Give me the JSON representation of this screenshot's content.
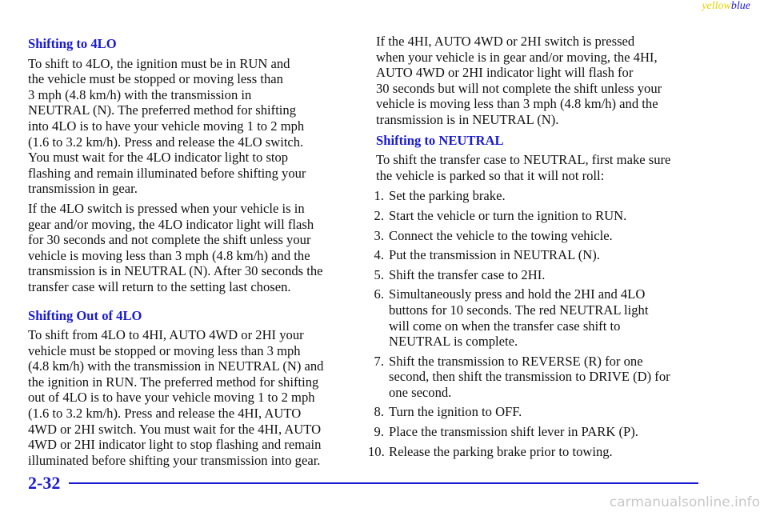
{
  "header": {
    "left": "yellow",
    "right": "blue"
  },
  "left_column": [
    {
      "heading": "Shifting to 4LO"
    },
    {
      "lines": [
        "To shift to 4LO, the ignition must be in RUN and",
        "the vehicle must be stopped or moving less than",
        "3 mph (4.8 km/h) with the transmission in",
        "NEUTRAL (N). The preferred method for shifting",
        "into 4LO is to have your vehicle moving 1 to 2 mph",
        "(1.6 to 3.2 km/h). Press and release the 4LO switch.",
        "You must wait for the 4LO indicator light to stop",
        "flashing and remain illuminated before shifting your",
        "transmission in gear."
      ]
    },
    {
      "lines": [
        "If the 4LO switch is pressed when your vehicle is in",
        "gear and/or moving, the 4LO indicator light will flash",
        "for 30 seconds and not complete the shift unless your",
        "vehicle is moving less than 3 mph (4.8 km/h) and the",
        "transmission is in NEUTRAL (N). After 30 seconds the",
        "transfer case will return to the setting last chosen."
      ]
    },
    {
      "heading": "Shifting Out of 4LO"
    },
    {
      "lines": [
        "To shift from 4LO to 4HI, AUTO 4WD or 2HI your",
        "vehicle must be stopped or moving less than 3 mph",
        "(4.8 km/h) with the transmission in NEUTRAL (N) and",
        "the ignition in RUN. The preferred method for shifting",
        "out of 4LO is to have your vehicle moving 1 to 2 mph",
        "(1.6 to 3.2 km/h). Press and release the 4HI, AUTO",
        "4WD or 2HI switch. You must wait for the 4HI, AUTO",
        "4WD or 2HI indicator light to stop flashing and remain",
        "illuminated before shifting your transmission into gear."
      ]
    }
  ],
  "right_column": [
    {
      "lines": [
        "If the 4HI, AUTO 4WD or 2HI switch is pressed",
        "when your vehicle is in gear and/or moving, the 4HI,",
        "AUTO 4WD or 2HI indicator light will flash for",
        "30 seconds but will not complete the shift unless your",
        "vehicle is moving less than 3 mph (4.8 km/h) and the",
        "transmission is in NEUTRAL (N)."
      ]
    },
    {
      "heading": "Shifting to NEUTRAL"
    },
    {
      "lines": [
        "To shift the transfer case to NEUTRAL, first make sure",
        "the vehicle is parked so that it will not roll:"
      ]
    },
    {
      "items": [
        {
          "number": "1.",
          "lines": [
            "Set the parking brake."
          ]
        },
        {
          "number": "2.",
          "lines": [
            "Start the vehicle or turn the ignition to RUN."
          ]
        },
        {
          "number": "3.",
          "lines": [
            "Connect the vehicle to the towing vehicle."
          ]
        },
        {
          "number": "4.",
          "lines": [
            "Put the transmission in NEUTRAL (N)."
          ]
        },
        {
          "number": "5.",
          "lines": [
            "Shift the transfer case to 2HI."
          ]
        },
        {
          "number": "6.",
          "lines": [
            "Simultaneously press and hold the 2HI and 4LO",
            "buttons for 10 seconds. The red NEUTRAL light",
            "will come on when the transfer case shift to",
            "NEUTRAL is complete."
          ]
        },
        {
          "number": "7.",
          "lines": [
            "Shift the transmission to REVERSE (R) for one",
            "second, then shift the transmission to DRIVE (D) for",
            "one second."
          ]
        },
        {
          "number": "8.",
          "lines": [
            "Turn the ignition to OFF."
          ]
        },
        {
          "number": "9.",
          "lines": [
            "Place the transmission shift lever in PARK (P)."
          ]
        },
        {
          "number": "10.",
          "lines": [
            "Release the parking brake prior to towing."
          ]
        }
      ]
    }
  ],
  "footer": {
    "page": "2-32",
    "watermark": "carmanualsonline.info"
  }
}
